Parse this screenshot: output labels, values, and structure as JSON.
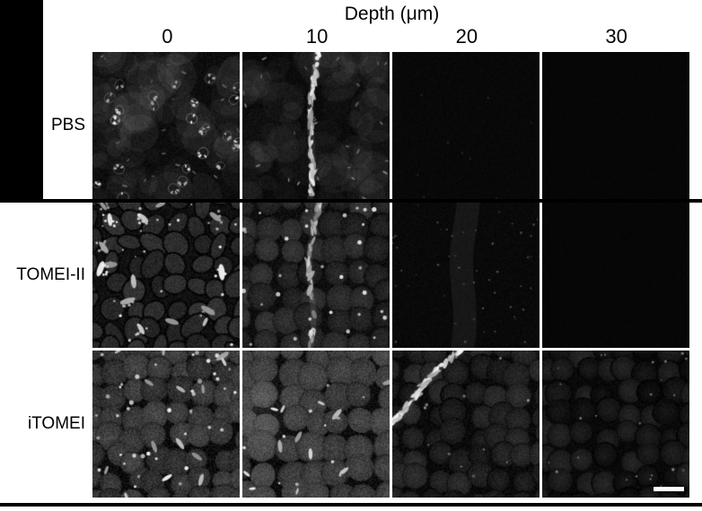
{
  "figure": {
    "title": "Depth (μm)",
    "col_headers": [
      "0",
      "10",
      "20",
      "30"
    ],
    "colors": {
      "background": "#ffffff",
      "mask_and_lines": "#000000",
      "text": "#000000",
      "scale_bar": "#ffffff"
    },
    "scale_bar": {
      "location": "bottom-right of iTOMEI 30 μm panel",
      "color": "#ffffff"
    },
    "rows": [
      {
        "label": "PBS",
        "cells": [
          {
            "depth": "0",
            "desc": "dark leaf surface with scattered bright stomatal rosettes",
            "render": {
              "base": 13,
              "noise": 9,
              "texture": "mottle",
              "mottle": 16,
              "speckles": [
                {
                  "type": "rosette",
                  "count": 26,
                  "bright": 242,
                  "size": 3
                },
                {
                  "type": "fleck",
                  "count": 20,
                  "bright": 115,
                  "size": 2.2
                }
              ]
            }
          },
          {
            "depth": "10",
            "desc": "dark field with bright fragmented vein running vertically",
            "render": {
              "base": 11,
              "noise": 8,
              "texture": "mottle",
              "mottle": 10,
              "streak": {
                "x1": 0.5,
                "y1": -0.02,
                "x2": 0.45,
                "y2": 1.02,
                "wiggle": 3,
                "bright": 255,
                "frag": true,
                "count": 60,
                "glow": 0.1,
                "gwidth": 7
              },
              "speckles": [
                {
                  "type": "fleck",
                  "count": 26,
                  "bright": 140,
                  "size": 2.2
                }
              ]
            }
          },
          {
            "depth": "20",
            "desc": "nearly black, faint noise only",
            "render": {
              "base": 8,
              "noise": 4,
              "texture": "none",
              "speckles": [
                {
                  "type": "dot",
                  "count": 12,
                  "bright": 42,
                  "size": 1.2
                }
              ]
            }
          },
          {
            "depth": "30",
            "desc": "black panel, no signal",
            "render": {
              "base": 6,
              "noise": 2,
              "texture": "none",
              "speckles": []
            }
          }
        ]
      },
      {
        "label": "TOMEI-II",
        "cells": [
          {
            "depth": "0",
            "desc": "pavement cells with bright guard-cell blobs and dot clusters",
            "render": {
              "base": 16,
              "noise": 14,
              "texture": "pavement",
              "texGray": 42,
              "speckles": [
                {
                  "type": "blob",
                  "count": 15,
                  "bright": 252,
                  "size": 6
                },
                {
                  "type": "dot",
                  "count": 22,
                  "bright": 250,
                  "size": 1.5
                }
              ]
            }
          },
          {
            "depth": "10",
            "desc": "grainy cell layer, wavy central vein, many bright dots",
            "render": {
              "base": 14,
              "noise": 13,
              "texture": "round",
              "texGray": 36,
              "cellSize": 26,
              "streak": {
                "x1": 0.5,
                "y1": -0.02,
                "x2": 0.45,
                "y2": 1.02,
                "wiggle": 4,
                "bright": 215,
                "frag": true,
                "count": 42,
                "glow": 0.1,
                "gwidth": 6
              },
              "speckles": [
                {
                  "type": "dot",
                  "count": 30,
                  "bright": 250,
                  "size": 2.2
                }
              ]
            }
          },
          {
            "depth": "20",
            "desc": "very dark, faint central glow with dim speckles",
            "render": {
              "base": 9,
              "noise": 5,
              "texture": "none",
              "streak": {
                "x1": 0.5,
                "y1": 0,
                "x2": 0.47,
                "y2": 1,
                "wiggle": 3,
                "bright": 0,
                "frag": false,
                "glow": 0.06,
                "gwidth": 26
              },
              "speckles": [
                {
                  "type": "dot",
                  "count": 50,
                  "bright": 92,
                  "size": 1.2
                }
              ]
            }
          },
          {
            "depth": "30",
            "desc": "black panel, no signal",
            "render": {
              "base": 6,
              "noise": 2,
              "texture": "none",
              "speckles": []
            }
          }
        ]
      },
      {
        "label": "iTOMEI",
        "cells": [
          {
            "depth": "0",
            "desc": "bright packed round cells with many white puncta and short bars",
            "render": {
              "base": 12,
              "noise": 20,
              "texture": "round",
              "texGray": 52,
              "cellSize": 24,
              "speckles": [
                {
                  "type": "dot",
                  "count": 40,
                  "bright": 252,
                  "size": 2.2
                },
                {
                  "type": "bar",
                  "count": 14,
                  "bright": 250,
                  "size": 5
                }
              ]
            }
          },
          {
            "depth": "10",
            "desc": "brightest spongy-cell mosaic, few bright bars, glow at left",
            "render": {
              "base": 12,
              "noise": 20,
              "texture": "round",
              "texGray": 60,
              "cellSize": 27,
              "patch": {
                "x": 0.08,
                "y": 0.4,
                "r": 0.32,
                "a": 0.1
              },
              "speckles": [
                {
                  "type": "bar",
                  "count": 13,
                  "bright": 252,
                  "size": 5
                },
                {
                  "type": "dot",
                  "count": 10,
                  "bright": 240,
                  "size": 1.8
                }
              ]
            }
          },
          {
            "depth": "20",
            "desc": "dim cells with bright fragmented diagonal vein upper-left",
            "render": {
              "base": 10,
              "noise": 12,
              "texture": "round",
              "texGray": 28,
              "cellSize": 24,
              "streak": {
                "x1": 0.46,
                "y1": -0.02,
                "x2": -0.04,
                "y2": 0.52,
                "wiggle": 3,
                "bright": 255,
                "frag": true,
                "count": 48,
                "glow": 0.08,
                "gwidth": 8
              },
              "speckles": [
                {
                  "type": "dot",
                  "count": 12,
                  "bright": 150,
                  "size": 1.5
                }
              ]
            }
          },
          {
            "depth": "30",
            "desc": "faint cell outlines with dim puncta, scale bar bottom right",
            "render": {
              "base": 9,
              "noise": 8,
              "texture": "round",
              "texGray": 18,
              "cellSize": 24,
              "speckles": [
                {
                  "type": "dot",
                  "count": 24,
                  "bright": 135,
                  "size": 1.4
                }
              ]
            }
          }
        ]
      }
    ]
  }
}
